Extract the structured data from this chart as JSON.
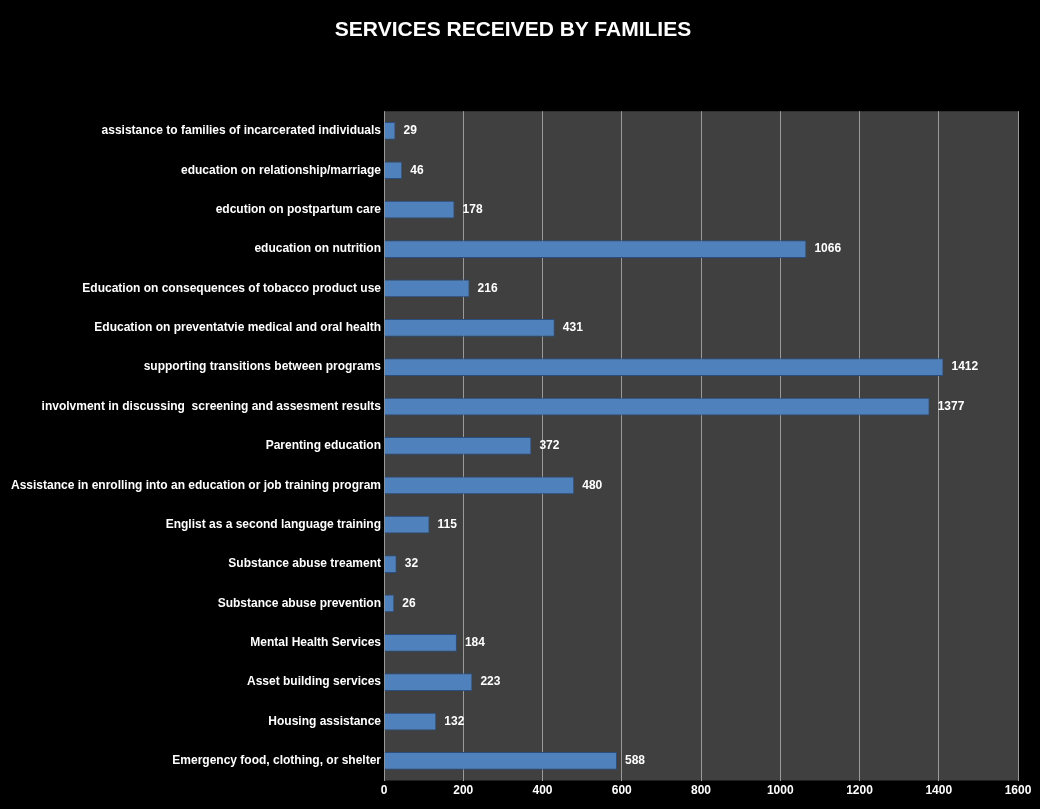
{
  "chart_data": {
    "type": "bar",
    "orientation": "horizontal",
    "title": "SERVICES RECEIVED BY FAMILIES",
    "categories": [
      "assistance to families of incarcerated individuals",
      "education on relationship/marriage",
      "edcution on postpartum care",
      "education on nutrition",
      "Education on consequences of tobacco product use",
      "Education on preventatvie medical and oral health",
      "supporting transitions between programs",
      "involvment in discussing  screening and assesment results",
      "Parenting education",
      "Assistance in enrolling into an education or job training program",
      "Englist as a second language training",
      "Substance abuse treament",
      "Substance abuse prevention",
      "Mental Health Services",
      "Asset building services",
      "Housing assistance",
      "Emergency food, clothing, or shelter"
    ],
    "values": [
      29,
      46,
      178,
      1066,
      216,
      431,
      1412,
      1377,
      372,
      480,
      115,
      32,
      26,
      184,
      223,
      132,
      588
    ],
    "color": "#4f81bd",
    "xlim": [
      0,
      1600
    ],
    "xticks": [
      0,
      200,
      400,
      600,
      800,
      1000,
      1200,
      1400,
      1600
    ],
    "grid": "x",
    "legend": false,
    "data_labels": true
  }
}
